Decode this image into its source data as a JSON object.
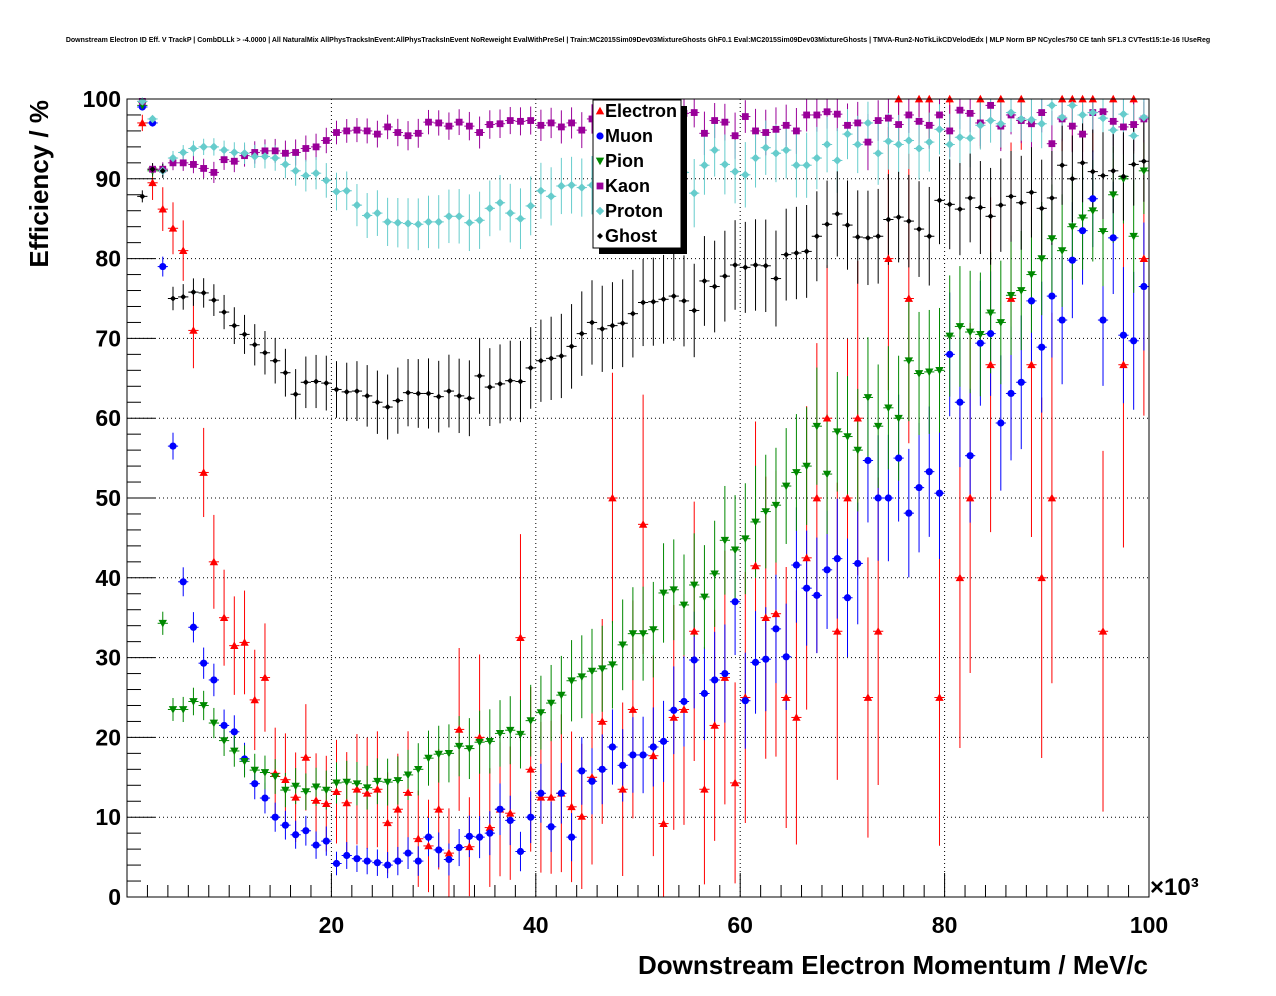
{
  "chart_data": {
    "type": "scatter",
    "title": "Downstream Electron ID Eff. V TrackP | CombDLLk > -4.0000 | All NaturalMix AllPhysTracksInEvent:AllPhysTracksInEvent NoReweight EvalWithPreSel | Train:MC2015Sim09Dev03MixtureGhosts GhF0.1 Eval:MC2015Sim09Dev03MixtureGhosts | TMVA-Run2-NoTkLikCDVelodEdx | MLP Norm BP NCycles750 CE tanh SF1.3 CVTest15:1e-16 !UseReg",
    "xlabel": "Downstream Electron Momentum / MeV/c",
    "ylabel": "Efficiency / %",
    "x_multiplier_label": "×10³",
    "xlim": [
      0,
      100
    ],
    "ylim": [
      0,
      100
    ],
    "x_ticks": [
      20,
      40,
      60,
      80,
      100
    ],
    "y_ticks": [
      0,
      10,
      20,
      30,
      40,
      50,
      60,
      70,
      80,
      90,
      100
    ],
    "grid": true,
    "legend_position": "top-center",
    "x": [
      1.5,
      2.5,
      3.5,
      4.5,
      5.5,
      6.5,
      7.5,
      8.5,
      9.5,
      10.5,
      11.5,
      12.5,
      13.5,
      14.5,
      15.5,
      16.5,
      17.5,
      18.5,
      19.5,
      20.5,
      21.5,
      22.5,
      23.5,
      24.5,
      25.5,
      26.5,
      27.5,
      28.5,
      29.5,
      30.5,
      31.5,
      32.5,
      33.5,
      34.5,
      35.5,
      36.5,
      37.5,
      38.5,
      39.5,
      40.5,
      41.5,
      42.5,
      43.5,
      44.5,
      45.5,
      46.5,
      47.5,
      48.5,
      49.5,
      50.5,
      51.5,
      52.5,
      53.5,
      54.5,
      55.5,
      56.5,
      57.5,
      58.5,
      59.5,
      60.5,
      61.5,
      62.5,
      63.5,
      64.5,
      65.5,
      66.5,
      67.5,
      68.5,
      69.5,
      70.5,
      71.5,
      72.5,
      73.5,
      74.5,
      75.5,
      76.5,
      77.5,
      78.5,
      79.5,
      80.5,
      81.5,
      82.5,
      83.5,
      84.5,
      85.5,
      86.5,
      87.5,
      88.5,
      89.5,
      90.5,
      91.5,
      92.5,
      93.5,
      94.5,
      95.5,
      96.5,
      97.5,
      98.5,
      99.5
    ],
    "series": [
      {
        "name": "Electron",
        "color": "#ff0000",
        "marker": "triangle-up",
        "values": [
          97,
          89.5,
          86.2,
          83.8,
          81,
          71,
          53.2,
          42,
          35,
          31.5,
          31.9,
          24.7,
          27.5,
          15.5,
          14.7,
          12.5,
          17.5,
          12.1,
          11.7,
          13.2,
          11.8,
          13.5,
          13,
          13.5,
          9.3,
          11,
          13.1,
          7.3,
          6.4,
          11,
          5.5,
          21,
          6.3,
          20,
          8.7,
          11,
          10.5,
          32.5,
          16,
          12.5,
          12.5,
          13,
          11.3,
          10.1,
          15,
          22,
          50,
          13.5,
          23.5,
          46.7,
          17.7,
          9.2,
          22.5,
          23.5,
          33.3,
          13.5,
          21.5,
          27.5,
          14.3,
          25,
          41.5,
          35,
          35.5,
          25,
          22.5,
          42.5,
          50,
          60,
          33.3,
          50,
          60,
          25,
          33.3,
          80,
          100,
          75,
          100,
          100,
          25,
          100,
          40,
          50,
          100,
          66.7,
          100,
          75,
          100,
          66.7,
          40,
          50,
          100,
          100,
          100,
          100,
          33.3,
          100,
          66.7,
          100,
          80
        ]
      },
      {
        "name": "Muon",
        "color": "#0000ff",
        "marker": "circle",
        "values": [
          99,
          97,
          79,
          56.5,
          39.5,
          33.8,
          29.3,
          27.2,
          21.5,
          20.7,
          17.3,
          14.2,
          12.4,
          10,
          9,
          7.8,
          8.3,
          6.5,
          7,
          4.2,
          5.2,
          4.8,
          4.5,
          4.3,
          4,
          4.5,
          5.5,
          4.5,
          7.5,
          5.9,
          4.7,
          6.2,
          7.6,
          7.5,
          8,
          11,
          9.6,
          5.7,
          10,
          13,
          8.8,
          13,
          7.5,
          15.8,
          14.5,
          16,
          18.8,
          16.5,
          17.8,
          17.8,
          18.8,
          19.5,
          23.4,
          24.5,
          29.7,
          25.5,
          27.2,
          28,
          37,
          24.6,
          29.4,
          29.8,
          33.6,
          30.1,
          41.6,
          38.7,
          37.8,
          41,
          42.4,
          37.5,
          41.8,
          54.7,
          50,
          50,
          55,
          48.1,
          51.3,
          53.3,
          50.6,
          68,
          62,
          55.3,
          69.4,
          70.6,
          59.4,
          63.1,
          64.5,
          74.7,
          68.9,
          75.3,
          72.3,
          79.8,
          83.5,
          87.5,
          72.3,
          82.6,
          70.4,
          69.7,
          76.5
        ]
      },
      {
        "name": "Pion",
        "color": "#008800",
        "marker": "triangle-down",
        "values": [
          99.2,
          91,
          34.3,
          23.5,
          23.5,
          24.5,
          24,
          21.8,
          19.6,
          18.3,
          17,
          15.9,
          15.6,
          15.1,
          13.4,
          13.9,
          13.2,
          13.8,
          13.4,
          14.3,
          14.4,
          14.2,
          13.7,
          14.5,
          14.4,
          14.6,
          15.3,
          16,
          17.4,
          17.9,
          18,
          18.9,
          18.6,
          19.4,
          19.5,
          20.5,
          20.9,
          20.4,
          22.1,
          23.1,
          24.3,
          25.3,
          27.1,
          27.6,
          28.3,
          28.6,
          29.1,
          31.6,
          33,
          33,
          33.5,
          38.1,
          38.5,
          36.6,
          39.1,
          37.6,
          40.5,
          44.7,
          43.5,
          44.9,
          47,
          48.3,
          49.1,
          51.5,
          53.2,
          54,
          59,
          53,
          58.3,
          57.7,
          56,
          62.6,
          59,
          61.3,
          60,
          67.2,
          65.6,
          65.8,
          66,
          70.3,
          71.5,
          70.8,
          70.5,
          73.2,
          72,
          75.4,
          76,
          78,
          80,
          82.5,
          81,
          84,
          85.1,
          86,
          83.4,
          88,
          90,
          82.8,
          91
        ]
      },
      {
        "name": "Kaon",
        "color": "#990099",
        "marker": "square",
        "values": [
          99.7,
          91.2,
          91.2,
          92,
          92,
          91.8,
          91.3,
          90.8,
          92.4,
          92.2,
          92.9,
          93.3,
          93.5,
          93.5,
          93.2,
          93.3,
          93.8,
          94,
          94.8,
          95.8,
          96,
          96.1,
          96,
          95.6,
          96.5,
          95.8,
          95.4,
          95.7,
          97.1,
          97,
          96.6,
          97.1,
          96.6,
          95.8,
          96.8,
          96.9,
          97.3,
          97.2,
          97.3,
          96.7,
          97,
          96.5,
          97,
          96.1,
          97.5,
          96.2,
          99,
          98,
          95,
          96.6,
          97.3,
          96,
          98.6,
          98.2,
          98.3,
          95.7,
          97.3,
          97.1,
          95.4,
          97.8,
          96,
          95.8,
          96.2,
          96.7,
          96,
          98,
          98,
          98.4,
          98.1,
          96.7,
          97,
          94.6,
          97.3,
          97.6,
          96.8,
          98,
          97.2,
          96.7,
          98,
          96,
          98.6,
          98.2,
          97,
          99.2,
          96.6,
          98,
          97.3,
          96.9,
          98.3,
          94.4,
          97.5,
          96.6,
          95.6,
          98.3,
          98.4,
          97.2,
          96.5,
          96.8,
          97.5
        ]
      },
      {
        "name": "Proton",
        "color": "#66cccc",
        "marker": "diamond",
        "values": [
          99.7,
          97.5,
          91,
          92.6,
          93.3,
          93.8,
          94,
          94,
          93.6,
          93.3,
          93.2,
          92.8,
          92.8,
          92.6,
          91.8,
          91,
          90.4,
          90.7,
          89.8,
          88.4,
          88.5,
          86.7,
          85.4,
          85.7,
          84.6,
          84.5,
          84.4,
          84.3,
          84.6,
          84.6,
          85.3,
          85.3,
          84.5,
          84.8,
          86.3,
          87,
          85.7,
          85,
          86.6,
          88.5,
          87.8,
          89.1,
          89.2,
          88.9,
          89.2,
          90.8,
          86.4,
          88.7,
          87.8,
          88.5,
          88.4,
          90,
          94.5,
          90.8,
          88.2,
          91.7,
          93.6,
          91.8,
          90.9,
          90.5,
          92.6,
          93.9,
          93.2,
          93.6,
          91.7,
          91.7,
          92.6,
          94.3,
          92.3,
          95.6,
          94.3,
          97,
          93.2,
          94.7,
          94.3,
          94.8,
          93.8,
          94.6,
          96.2,
          94.3,
          95.2,
          95.1,
          96.7,
          97.3,
          96.9,
          98.3,
          97.5,
          97.4,
          96.9,
          99.2,
          97.7,
          99.2,
          98,
          98.3,
          97.6,
          96.1,
          98.1,
          95.4,
          97.7
        ]
      },
      {
        "name": "Ghost",
        "color": "#000000",
        "marker": "cross",
        "values": [
          87.8,
          91.2,
          91,
          75,
          75.2,
          75.8,
          75.7,
          74.8,
          73.3,
          71.6,
          70.5,
          69.2,
          68.2,
          67.2,
          65.7,
          63,
          64.5,
          64.6,
          64.4,
          63.6,
          63.3,
          63.4,
          62.8,
          62,
          61.4,
          62.2,
          63.2,
          63.1,
          63.1,
          62.7,
          63.4,
          62.8,
          62.5,
          65.3,
          63.9,
          64.3,
          64.7,
          64.6,
          66.3,
          67.2,
          67.5,
          67.8,
          69,
          70.6,
          72,
          71.2,
          71.6,
          71.9,
          73.1,
          74.5,
          74.6,
          74.9,
          75.3,
          74.7,
          73.5,
          77.2,
          76.5,
          77.8,
          79.2,
          78.9,
          79.2,
          79.1,
          77.5,
          80.5,
          80.7,
          80.9,
          82.8,
          84.3,
          85.6,
          84.2,
          82.7,
          82.6,
          82.8,
          84.9,
          85.2,
          84.7,
          83.7,
          82.8,
          87.3,
          86.8,
          86.2,
          87.6,
          86.4,
          85.3,
          86.7,
          87.8,
          87,
          88.3,
          86.3,
          87.6,
          91.7,
          90,
          92,
          90.9,
          90.4,
          91,
          90.3,
          91.8,
          92.2
        ]
      }
    ]
  },
  "legend_title_anchor": "top-center"
}
